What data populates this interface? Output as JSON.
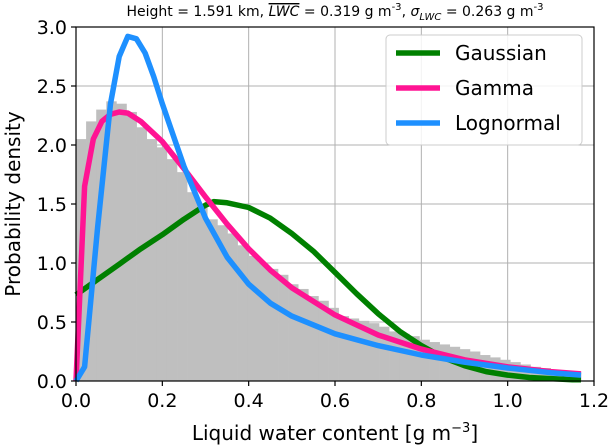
{
  "chart_data": {
    "type": "histogram-with-lines",
    "title": "Height = 1.591 km, LWC = 0.319 g m-3, σLWC = 0.263 g m-3",
    "title_parts": {
      "height": "Height = 1.591 km, ",
      "lwc_symbol": "LWC",
      "lwc_value": " = 0.319 g m",
      "lwc_exp": "-3",
      "sep": ", ",
      "sigma_symbol": "σ",
      "sigma_sub": "LWC",
      "sigma_value": " = 0.263 g m",
      "sigma_exp": "-3"
    },
    "xlabel_main": "Liquid water content [g m",
    "xlabel_exp": "−3",
    "xlabel_close": "]",
    "ylabel": "Probability density",
    "xlim": [
      0.0,
      1.2
    ],
    "ylim": [
      0.0,
      3.0
    ],
    "xticks": [
      0.0,
      0.2,
      0.4,
      0.6,
      0.8,
      1.0,
      1.2
    ],
    "xtick_labels": [
      "0.0",
      "0.2",
      "0.4",
      "0.6",
      "0.8",
      "1.0",
      "1.2"
    ],
    "yticks": [
      0.0,
      0.5,
      1.0,
      1.5,
      2.0,
      2.5,
      3.0
    ],
    "ytick_labels": [
      "0.0",
      "0.5",
      "1.0",
      "1.5",
      "2.0",
      "2.5",
      "3.0"
    ],
    "grid": true,
    "legend_position": "top-right",
    "histogram": {
      "color": "#bfbfbf",
      "bin_width": 0.0234,
      "bin_starts": [
        0.0,
        0.0234,
        0.0468,
        0.0702,
        0.0936,
        0.117,
        0.1404,
        0.1638,
        0.1872,
        0.2106,
        0.234,
        0.2574,
        0.2808,
        0.3042,
        0.3276,
        0.351,
        0.3744,
        0.3978,
        0.4212,
        0.4446,
        0.468,
        0.4914,
        0.5148,
        0.5382,
        0.5616,
        0.585,
        0.6084,
        0.6318,
        0.6552,
        0.6786,
        0.702,
        0.7254,
        0.7488,
        0.7722,
        0.7956,
        0.819,
        0.8424,
        0.8658,
        0.8892,
        0.9126,
        0.936,
        0.9594,
        0.9828,
        1.0062,
        1.0296,
        1.053,
        1.0764,
        1.0998,
        1.1232,
        1.1466
      ],
      "densities": [
        2.05,
        2.2,
        2.3,
        2.37,
        2.35,
        2.28,
        2.15,
        2.05,
        1.98,
        1.88,
        1.77,
        1.6,
        1.48,
        1.37,
        1.32,
        1.25,
        1.15,
        1.06,
        1.0,
        0.95,
        0.9,
        0.82,
        0.78,
        0.72,
        0.68,
        0.62,
        0.55,
        0.53,
        0.51,
        0.49,
        0.46,
        0.42,
        0.4,
        0.38,
        0.35,
        0.33,
        0.31,
        0.29,
        0.27,
        0.25,
        0.22,
        0.2,
        0.18,
        0.16,
        0.14,
        0.12,
        0.11,
        0.09,
        0.08,
        0.07
      ]
    },
    "series": [
      {
        "name": "Gaussian",
        "color": "#008000",
        "x": [
          0.0,
          0.05,
          0.1,
          0.15,
          0.2,
          0.25,
          0.3,
          0.319,
          0.35,
          0.4,
          0.45,
          0.5,
          0.55,
          0.6,
          0.65,
          0.7,
          0.75,
          0.8,
          0.85,
          0.9,
          0.95,
          1.0,
          1.05,
          1.1,
          1.15,
          1.17
        ],
        "y": [
          0.73,
          0.86,
          0.99,
          1.12,
          1.24,
          1.37,
          1.49,
          1.52,
          1.51,
          1.47,
          1.38,
          1.25,
          1.1,
          0.92,
          0.74,
          0.57,
          0.42,
          0.3,
          0.2,
          0.13,
          0.08,
          0.05,
          0.03,
          0.02,
          0.01,
          0.01
        ]
      },
      {
        "name": "Gamma",
        "color": "#ff1493",
        "x": [
          0.0,
          0.02,
          0.04,
          0.06,
          0.08,
          0.1,
          0.12,
          0.15,
          0.2,
          0.25,
          0.3,
          0.35,
          0.4,
          0.45,
          0.5,
          0.6,
          0.7,
          0.8,
          0.9,
          1.0,
          1.1,
          1.17
        ],
        "y": [
          0.0,
          1.65,
          2.05,
          2.2,
          2.26,
          2.28,
          2.27,
          2.2,
          2.03,
          1.8,
          1.56,
          1.33,
          1.12,
          0.94,
          0.79,
          0.56,
          0.39,
          0.27,
          0.18,
          0.12,
          0.08,
          0.06
        ]
      },
      {
        "name": "Lognormal",
        "color": "#1e90ff",
        "x": [
          0.0,
          0.02,
          0.05,
          0.08,
          0.1,
          0.12,
          0.14,
          0.16,
          0.18,
          0.2,
          0.25,
          0.3,
          0.35,
          0.4,
          0.45,
          0.5,
          0.6,
          0.7,
          0.8,
          0.9,
          1.0,
          1.1,
          1.17
        ],
        "y": [
          0.0,
          0.12,
          1.3,
          2.35,
          2.75,
          2.92,
          2.9,
          2.78,
          2.58,
          2.35,
          1.82,
          1.38,
          1.05,
          0.82,
          0.66,
          0.55,
          0.4,
          0.3,
          0.22,
          0.16,
          0.11,
          0.07,
          0.05
        ]
      }
    ]
  }
}
